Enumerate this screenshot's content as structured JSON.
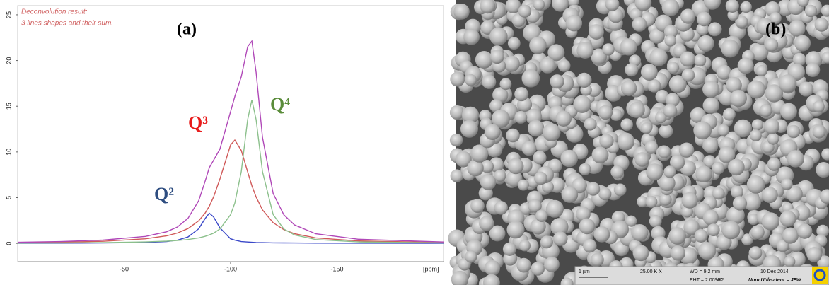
{
  "chart_data": {
    "type": "line",
    "annotations": [
      "Deconvolution result:",
      "3 lines shapes and their sum."
    ],
    "x_label": "[ppm]",
    "x": [
      0,
      -20,
      -40,
      -60,
      -70,
      -75,
      -80,
      -85,
      -88,
      -90,
      -92,
      -95,
      -100,
      -102,
      -105,
      -108,
      -110,
      -112,
      -115,
      -120,
      -125,
      -130,
      -140,
      -160,
      -200
    ],
    "series": [
      {
        "name": "Q²",
        "color": "#3a48c8",
        "label_color": "#2e4d80",
        "values": [
          0,
          0.02,
          0.05,
          0.1,
          0.2,
          0.35,
          0.7,
          1.6,
          2.7,
          3.3,
          2.9,
          1.7,
          0.5,
          0.35,
          0.2,
          0.15,
          0.12,
          0.1,
          0.08,
          0.06,
          0.05,
          0.04,
          0.03,
          0.02,
          0.01
        ]
      },
      {
        "name": "Q³",
        "color": "#d05a5a",
        "label_color": "#e81c1c",
        "values": [
          0.09,
          0.13,
          0.23,
          0.5,
          0.83,
          1.13,
          1.62,
          2.47,
          3.3,
          4.07,
          5.07,
          7.04,
          10.77,
          11.3,
          10.17,
          7.83,
          6.31,
          5.07,
          3.66,
          2.26,
          1.5,
          1.06,
          0.6,
          0.27,
          0.09
        ]
      },
      {
        "name": "Q⁴",
        "color": "#8cc08c",
        "label_color": "#5a8c3a",
        "values": [
          0.03,
          0.05,
          0.08,
          0.16,
          0.24,
          0.31,
          0.42,
          0.6,
          0.77,
          0.92,
          1.12,
          1.57,
          3.14,
          4.41,
          7.85,
          13.53,
          15.7,
          13.53,
          7.85,
          3.14,
          1.57,
          0.92,
          0.42,
          0.16,
          0.05
        ]
      },
      {
        "color": "#b048b8",
        "values": [
          0.12,
          0.2,
          0.36,
          0.76,
          1.27,
          1.79,
          2.74,
          4.67,
          6.77,
          8.29,
          9.09,
          10.31,
          14.41,
          16.06,
          18.22,
          21.51,
          22.13,
          18.7,
          11.59,
          5.46,
          3.12,
          2.02,
          1.05,
          0.45,
          0.15
        ]
      }
    ],
    "xlim": [
      0,
      -200
    ],
    "xticks": [
      -50,
      -100,
      -150
    ],
    "ylim": [
      -2,
      26
    ],
    "yticks": [
      0,
      5,
      10,
      15,
      20,
      25
    ]
  },
  "panels": [
    {
      "label": "(a)"
    },
    {
      "label": "(b)",
      "info": [
        "1 µm",
        "25.00 K X",
        "WD =  9.2 mm",
        "10 Déc 2014",
        "EHT =  2.00 kV",
        "SE2",
        "Nom Utilisateur = JFW"
      ]
    }
  ]
}
